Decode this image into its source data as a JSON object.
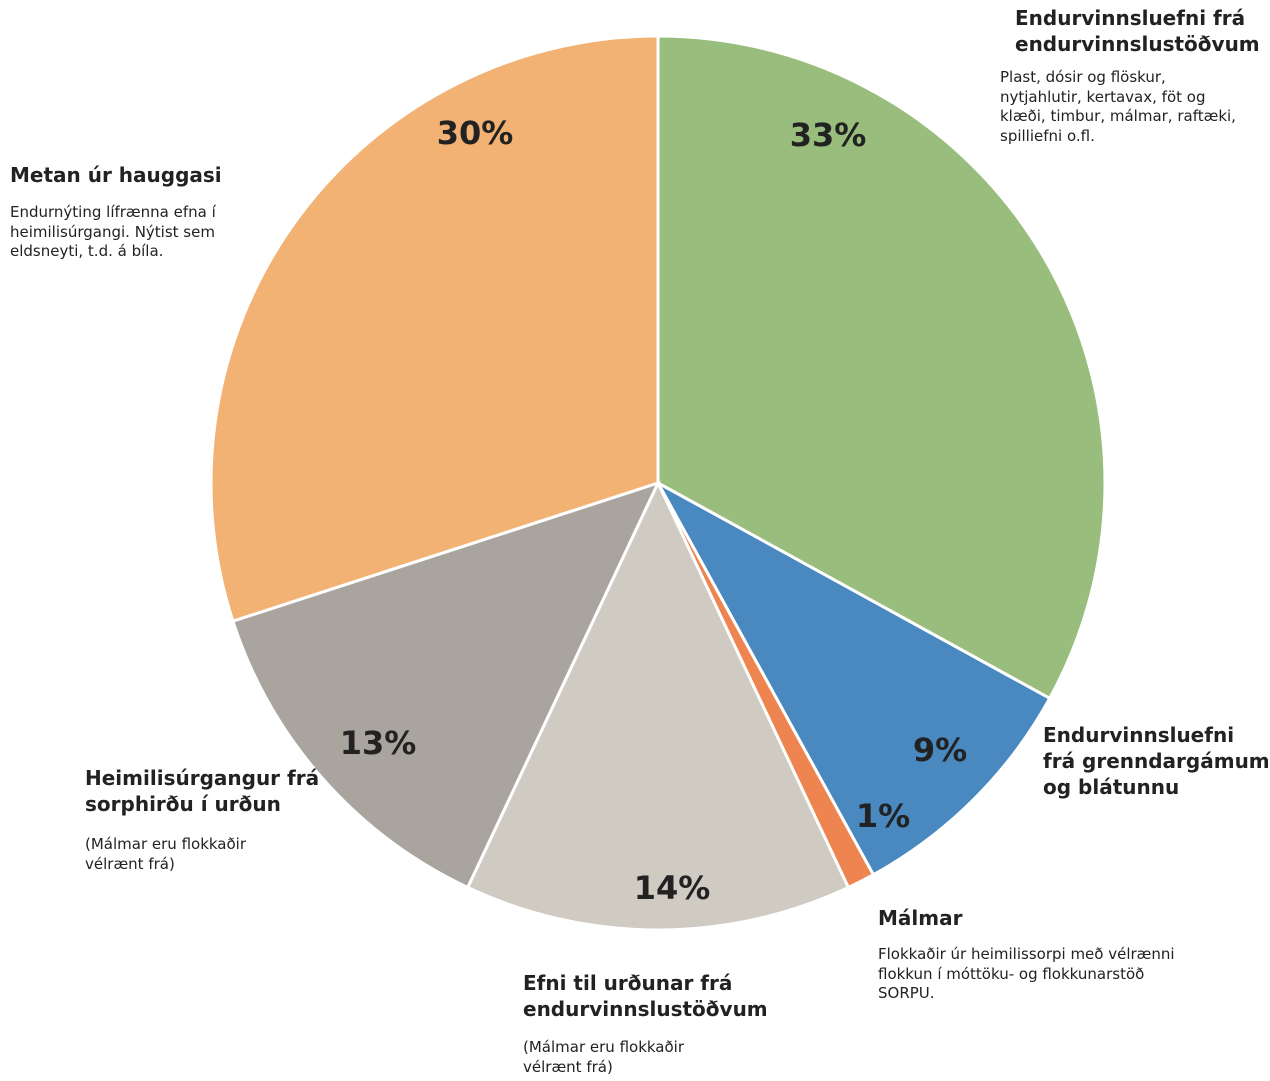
{
  "chart_data": {
    "type": "pie",
    "categories": [
      "Endurvinnsluefni frá endurvinnslustöðvum",
      "Endurvinnsluefni frá grenndargámum og blátunnu",
      "Málmar",
      "Efni til urðunar frá endurvinnslustöðvum",
      "Heimilisúrgangur frá sorphirðu í urðun",
      "Metan úr hauggasi"
    ],
    "descriptions": [
      "Plast, dósir og flöskur, nytjahlutir, kertavax, föt og klæði, timbur, málmar, raftæki, spilliefni o.fl.",
      null,
      "Flokkaðir úr heimilissorpi með vélrænni flokkun í móttöku- og flokkunarstöð SORPU.",
      "(Málmar eru flokkaðir vélrænt frá)",
      "(Málmar eru flokkaðir vélrænt frá)",
      "Endurnýting lífrænna efna í heimilisúrgangi. Nýtist sem eldsneyti, t.d. á bíla."
    ],
    "values": [
      33,
      9,
      1,
      14,
      13,
      30
    ],
    "value_labels": [
      "33%",
      "9%",
      "1%",
      "14%",
      "13%",
      "30%"
    ],
    "colors": [
      "#98bd7c",
      "#4a88c0",
      "#ee8450",
      "#cfcac2",
      "#a9a49e",
      "#f2b274"
    ]
  }
}
